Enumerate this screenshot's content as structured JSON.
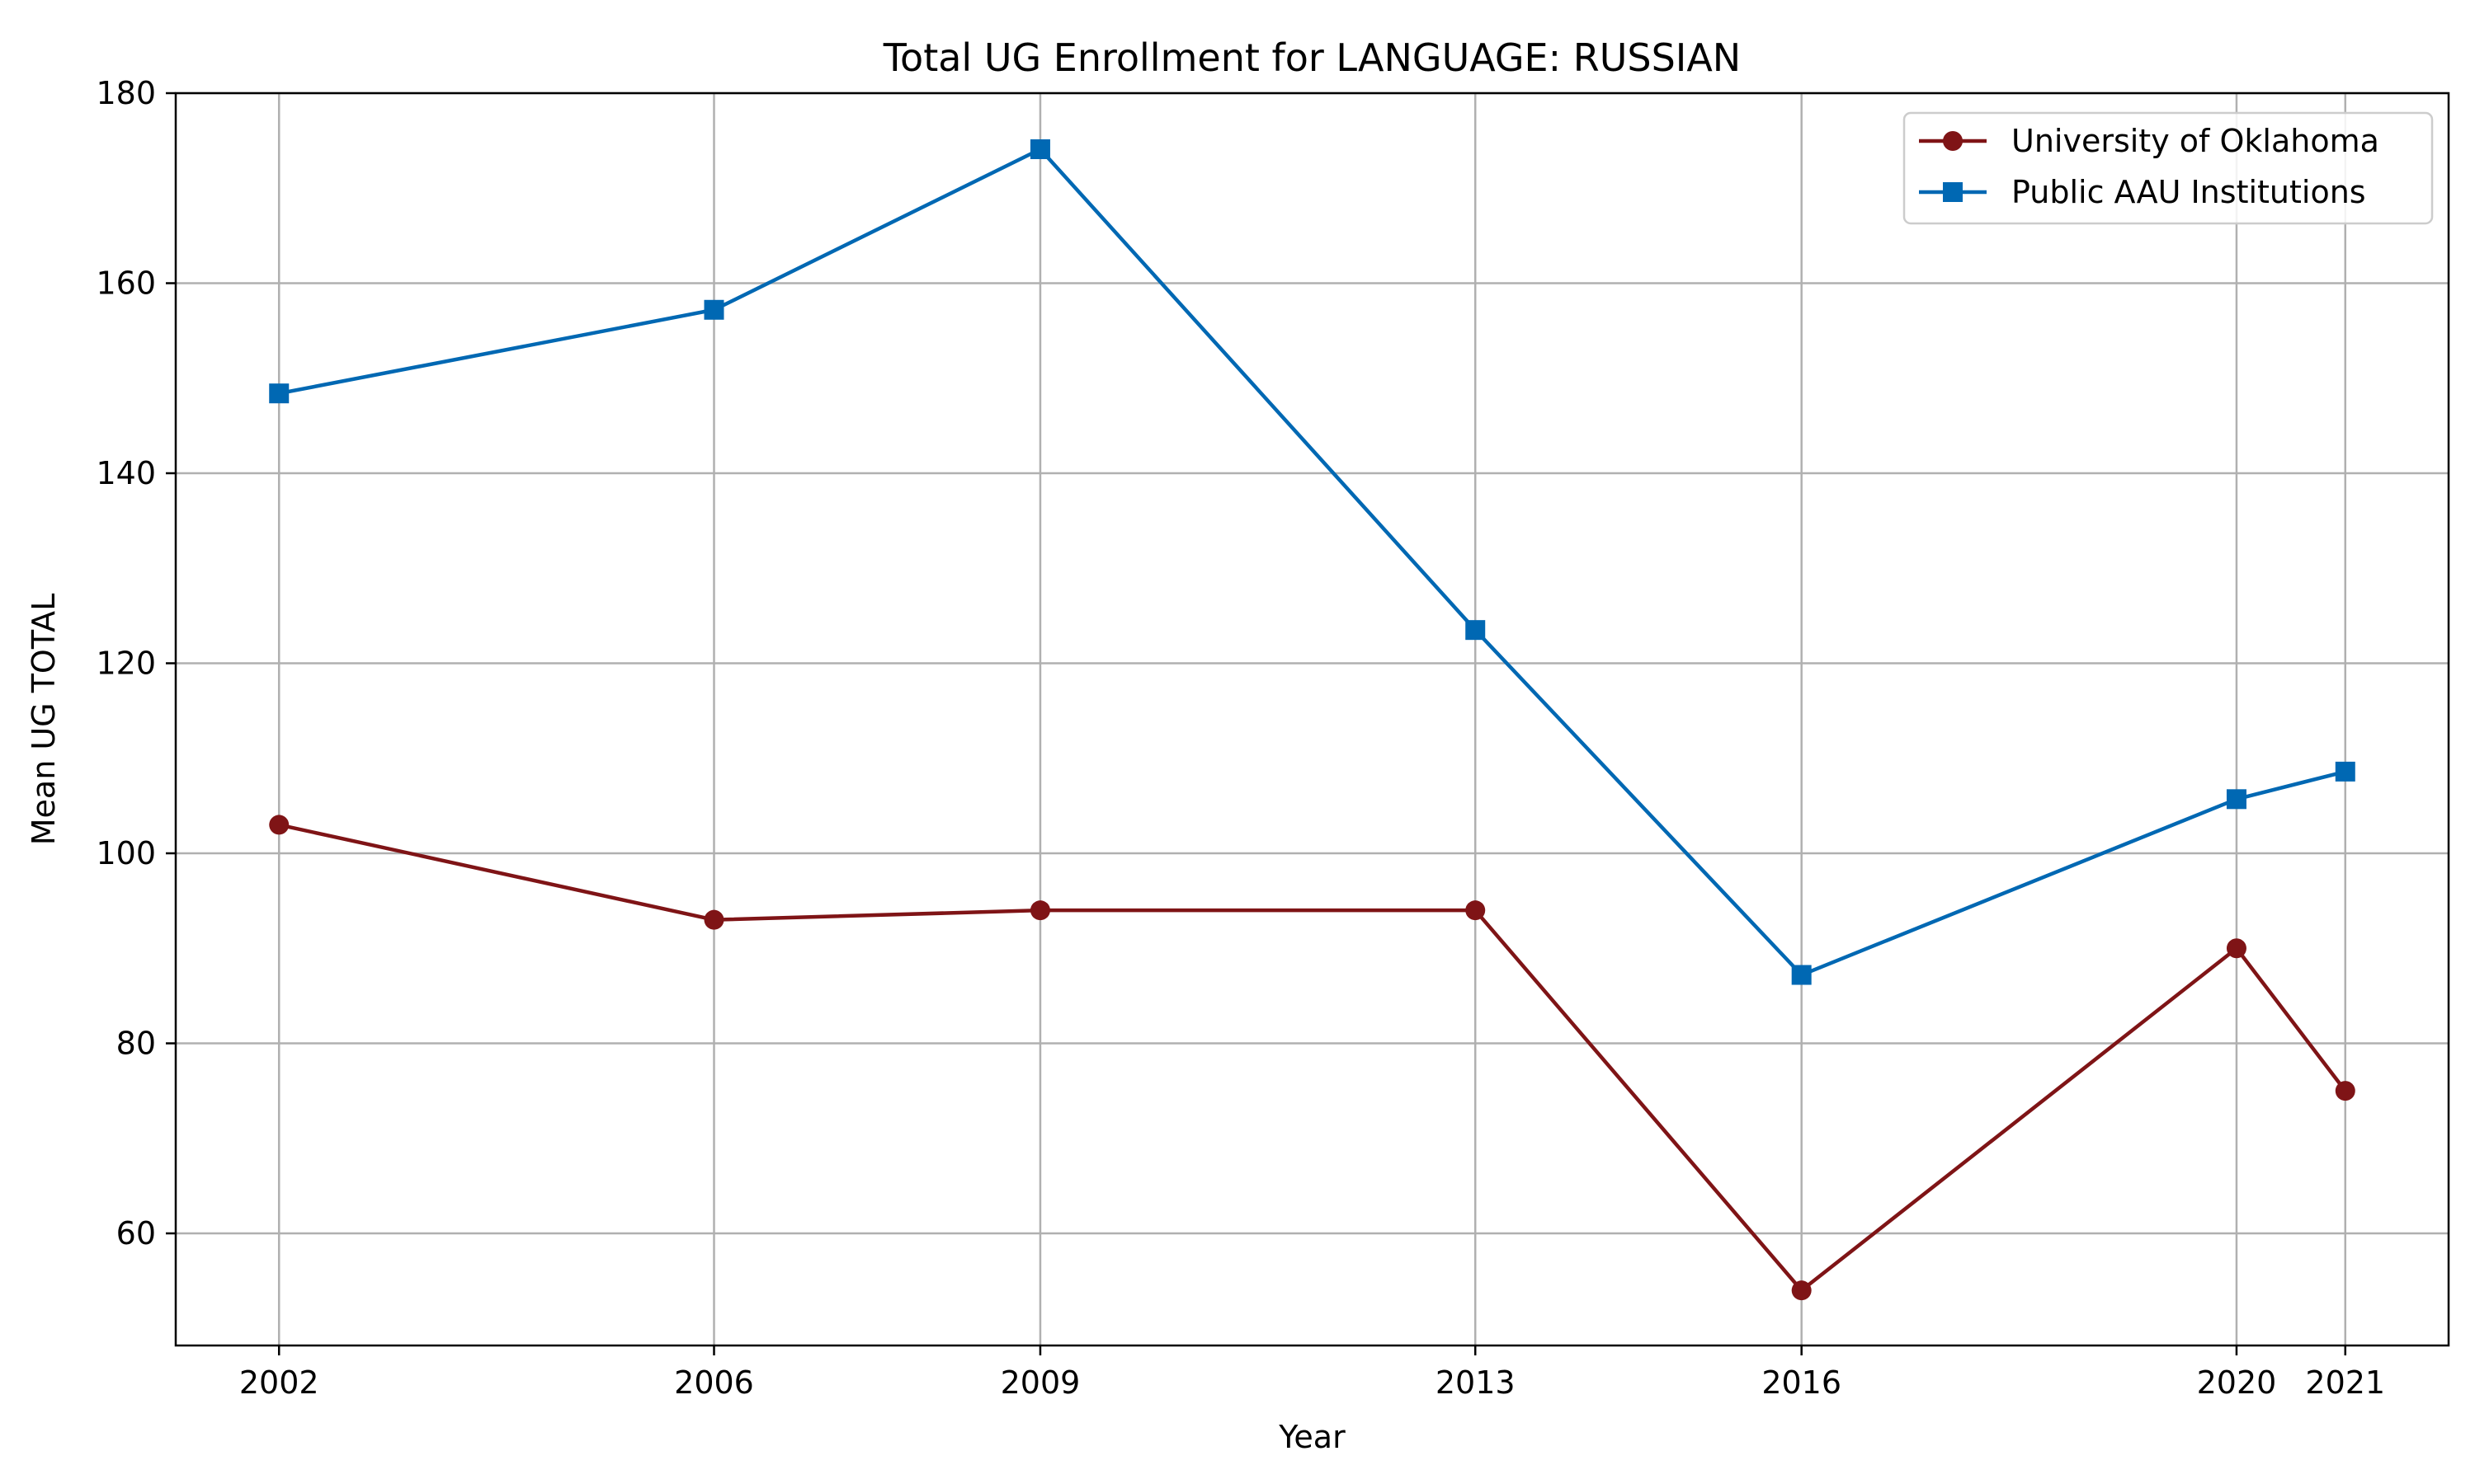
{
  "chart_data": {
    "type": "line",
    "title": "Total UG Enrollment for LANGUAGE: RUSSIAN",
    "xlabel": "Year",
    "ylabel": "Mean UG TOTAL",
    "x": [
      2002,
      2006,
      2009,
      2013,
      2016,
      2020,
      2021
    ],
    "x_tick_labels": [
      "2002",
      "2006",
      "2009",
      "2013",
      "2016",
      "2020",
      "2021"
    ],
    "xlim": [
      2001.05,
      2021.95
    ],
    "ylim": [
      48.2,
      180
    ],
    "y_ticks": [
      60,
      80,
      100,
      120,
      140,
      160,
      180
    ],
    "y_tick_labels": [
      "60",
      "80",
      "100",
      "120",
      "140",
      "160",
      "180"
    ],
    "grid": true,
    "legend_position": "top-right",
    "series": [
      {
        "name": "University of Oklahoma",
        "values": [
          103,
          93,
          94,
          94,
          54,
          90,
          75
        ],
        "color": "#7f1416",
        "marker": "circle"
      },
      {
        "name": "Public AAU Institutions",
        "values": [
          148.4,
          157.2,
          174.1,
          123.5,
          87.2,
          105.7,
          108.6
        ],
        "color": "#0068b3",
        "marker": "square"
      }
    ]
  }
}
